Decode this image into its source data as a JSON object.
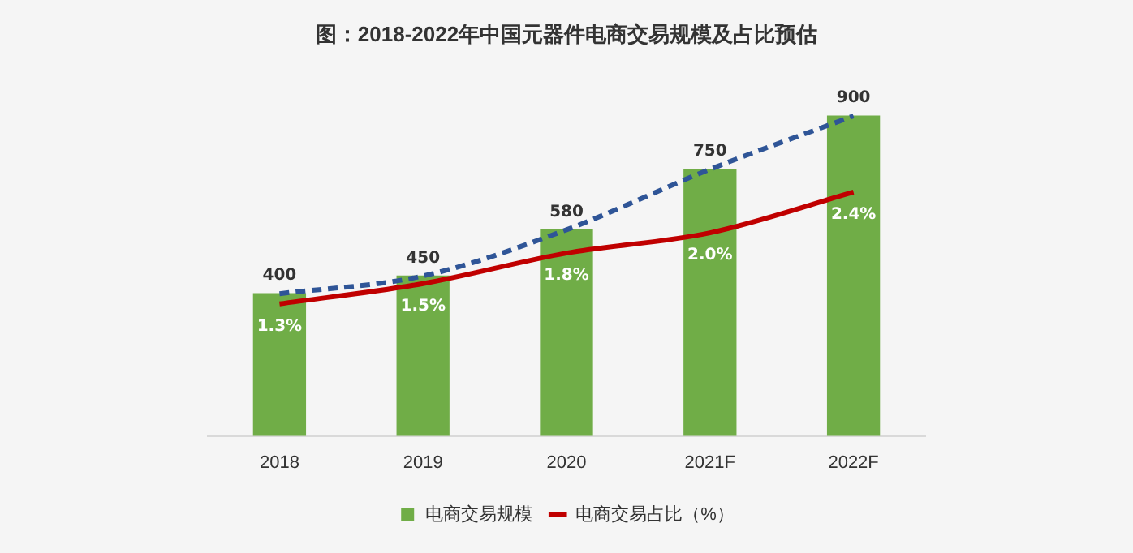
{
  "chart_data": {
    "type": "bar",
    "title": "图：2018-2022年中国元器件电商交易规模及占比预估",
    "categories": [
      "2018",
      "2019",
      "2020",
      "2021F",
      "2022F"
    ],
    "series": [
      {
        "name": "电商交易规模",
        "color": "#70ad47",
        "values": [
          400,
          450,
          580,
          750,
          900
        ],
        "value_labels": [
          "400",
          "450",
          "580",
          "750",
          "900"
        ]
      },
      {
        "name": "电商交易占比（%）",
        "type": "line",
        "axis": "y2",
        "color": "#c00000",
        "values": [
          1.3,
          1.5,
          1.8,
          2.0,
          2.4
        ],
        "value_labels": [
          "1.3%",
          "1.5%",
          "1.8%",
          "2.0%",
          "2.4%"
        ]
      },
      {
        "type": "line",
        "color": "#2f5597",
        "line_style": "dashed",
        "values": [
          400,
          450,
          580,
          750,
          900
        ]
      }
    ],
    "tick_labels": "x",
    "grid": false,
    "legend": "bottom",
    "marker": "none"
  }
}
